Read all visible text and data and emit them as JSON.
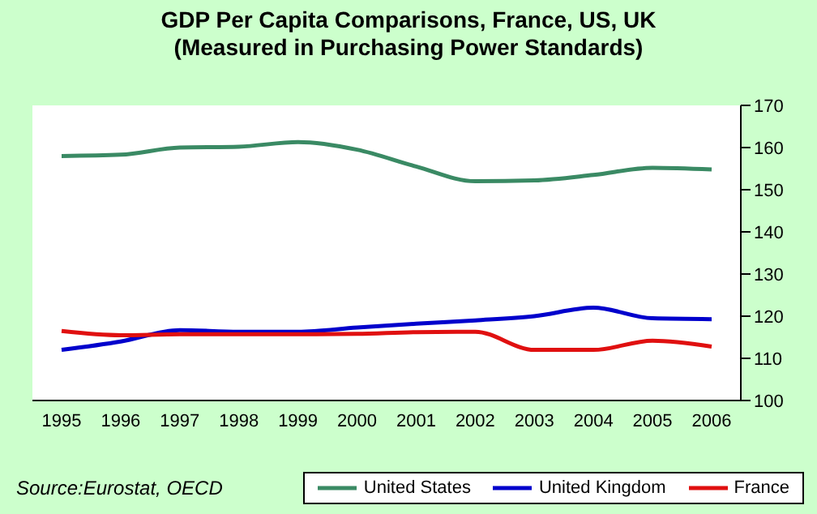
{
  "chart_data": {
    "type": "line",
    "title": "GDP Per Capita Comparisons, France, US, UK",
    "subtitle": "(Measured in Purchasing Power Standards)",
    "categories": [
      "1995",
      "1996",
      "1997",
      "1998",
      "1999",
      "2000",
      "2001",
      "2002",
      "2003",
      "2004",
      "2005",
      "2006"
    ],
    "series": [
      {
        "name": "United States",
        "color": "#3a8a64",
        "values": [
          158,
          158.3,
          160,
          160.2,
          161.3,
          159.5,
          155.5,
          152,
          152.2,
          153.5,
          155.2,
          154.8
        ]
      },
      {
        "name": "United Kingdom",
        "color": "#0000cc",
        "values": [
          112,
          114,
          116.7,
          116.3,
          116.3,
          117.3,
          118.2,
          119,
          120,
          122,
          119.5,
          119.3
        ]
      },
      {
        "name": "France",
        "color": "#e01010",
        "values": [
          116.5,
          115.5,
          115.7,
          115.7,
          115.7,
          115.8,
          116.2,
          116.3,
          112,
          112,
          114.2,
          112.8
        ]
      }
    ],
    "ylim": [
      100,
      170
    ],
    "yticks": [
      100,
      110,
      120,
      130,
      140,
      150,
      160,
      170
    ],
    "grid": false,
    "legend": "bottom right",
    "marker": "none",
    "line_style": "solid",
    "annotations": [
      "Source:Eurostat, OECD"
    ]
  }
}
